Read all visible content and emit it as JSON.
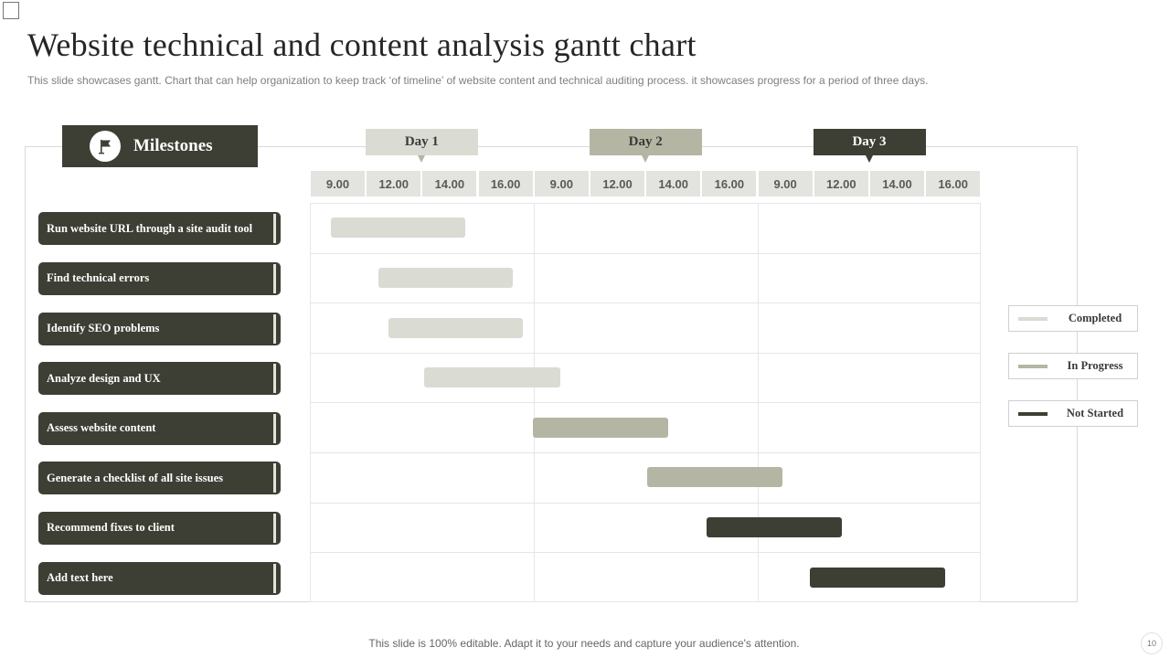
{
  "slide": {
    "title": "Website technical and content analysis  gantt chart",
    "subtitle": "This slide showcases gantt. Chart that can help organization to keep track ‘of timeline’ of website content and technical auditing process. it showcases progress for a period of three days.",
    "footer": "This slide is 100% editable. Adapt it to your needs and capture your audience's attention.",
    "page_number": "10"
  },
  "milestones_header": {
    "label": "Milestones",
    "icon": "flag-icon"
  },
  "colors": {
    "dark": "#3e3f34",
    "completed": "#dadbd3",
    "in_progress": "#b4b6a3",
    "not_started": "#3e3f34",
    "day1": "#dadbd3",
    "day2": "#b4b6a3",
    "day3": "#3e3f34"
  },
  "chart_data": {
    "type": "gantt",
    "title": "Website technical and content analysis  gantt chart",
    "days": [
      "Day 1",
      "Day 2",
      "Day 3"
    ],
    "time_ticks": [
      "9.00",
      "12.00",
      "14.00",
      "16.00",
      "9.00",
      "12.00",
      "14.00",
      "16.00",
      "9.00",
      "12.00",
      "14.00",
      "16.00"
    ],
    "legend": [
      {
        "key": "completed",
        "label": "Completed",
        "color": "#dadbd3"
      },
      {
        "key": "in_progress",
        "label": "In Progress",
        "color": "#b4b6a3"
      },
      {
        "key": "not_started",
        "label": "Not Started",
        "color": "#3e3f34"
      }
    ],
    "legend_position": "right",
    "tasks": [
      {
        "name": "Run website URL  through  a site audit tool",
        "start": 0.37,
        "end": 2.78,
        "status": "completed"
      },
      {
        "name": "Find  technical errors",
        "start": 1.22,
        "end": 3.63,
        "status": "completed"
      },
      {
        "name": "Identify  SEO problems",
        "start": 1.4,
        "end": 3.81,
        "status": "completed"
      },
      {
        "name": "Analyze design and UX",
        "start": 2.05,
        "end": 4.47,
        "status": "completed"
      },
      {
        "name": "Assess website content",
        "start": 3.98,
        "end": 6.4,
        "status": "in_progress"
      },
      {
        "name": "Generate  a checklist of all site issues",
        "start": 6.03,
        "end": 8.45,
        "status": "in_progress"
      },
      {
        "name": "Recommend   fixes to client",
        "start": 7.09,
        "end": 9.51,
        "status": "not_started"
      },
      {
        "name": "Add  text here",
        "start": 8.94,
        "end": 11.36,
        "status": "not_started"
      }
    ],
    "x_unit": "time slot index (12 slots: 4 per day)"
  }
}
